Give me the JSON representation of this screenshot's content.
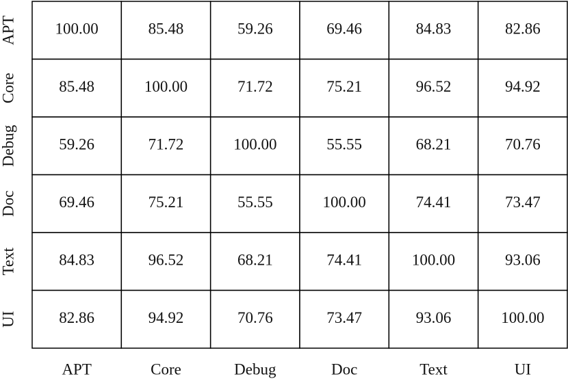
{
  "chart_data": {
    "type": "heatmap",
    "x_categories": [
      "APT",
      "Core",
      "Debug",
      "Doc",
      "Text",
      "UI"
    ],
    "y_categories": [
      "APT",
      "Core",
      "Debug",
      "Doc",
      "Text",
      "UI"
    ],
    "values": [
      [
        100.0,
        85.48,
        59.26,
        69.46,
        84.83,
        82.86
      ],
      [
        85.48,
        100.0,
        71.72,
        75.21,
        96.52,
        94.92
      ],
      [
        59.26,
        71.72,
        100.0,
        55.55,
        68.21,
        70.76
      ],
      [
        69.46,
        75.21,
        55.55,
        100.0,
        74.41,
        73.47
      ],
      [
        84.83,
        96.52,
        68.21,
        74.41,
        100.0,
        93.06
      ],
      [
        82.86,
        94.92,
        70.76,
        73.47,
        93.06,
        100.0
      ]
    ],
    "value_labels": [
      [
        "100.00",
        "85.48",
        "59.26",
        "69.46",
        "84.83",
        "82.86"
      ],
      [
        "85.48",
        "100.00",
        "71.72",
        "75.21",
        "96.52",
        "94.92"
      ],
      [
        "59.26",
        "71.72",
        "100.00",
        "55.55",
        "68.21",
        "70.76"
      ],
      [
        "69.46",
        "75.21",
        "55.55",
        "100.00",
        "74.41",
        "73.47"
      ],
      [
        "84.83",
        "96.52",
        "68.21",
        "74.41",
        "100.00",
        "93.06"
      ],
      [
        "82.86",
        "94.92",
        "70.76",
        "73.47",
        "93.06",
        "100.00"
      ]
    ],
    "color": "#ffffff"
  }
}
